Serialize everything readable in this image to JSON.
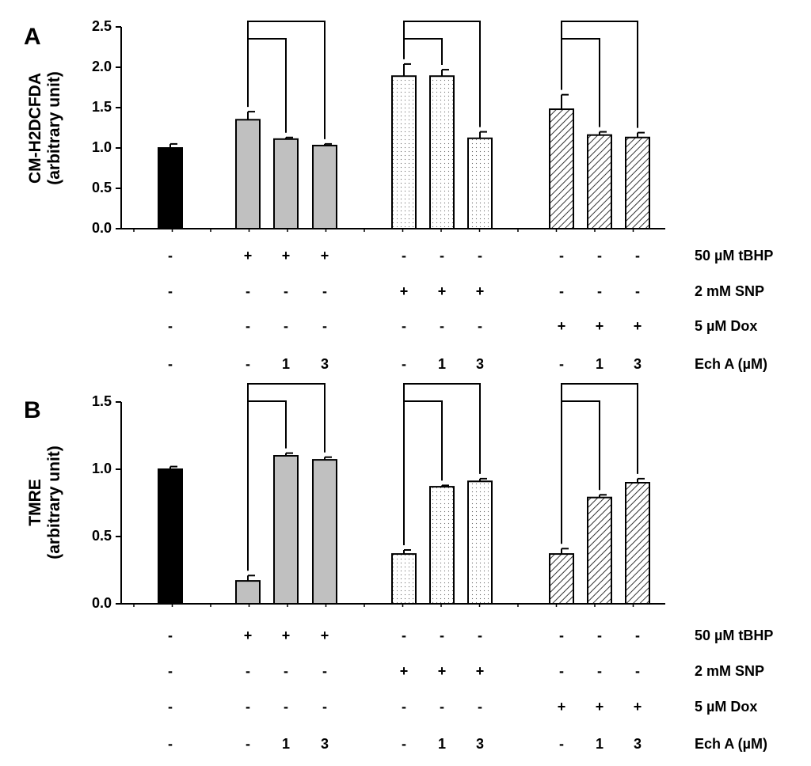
{
  "colors": {
    "control": "#000000",
    "tbhp": "#c0c0c0",
    "snp_bg": "#ffffff",
    "dot": "#666666",
    "hatch": "#333333"
  },
  "chart_data": [
    {
      "panel": "A",
      "type": "bar",
      "ylabel": [
        "CM-H2DCFDA",
        "(arbitrary unit)"
      ],
      "ylim": [
        0,
        2.5
      ],
      "yticks": [
        "0.0",
        "0.5",
        "1.0",
        "1.5",
        "2.0",
        "2.5"
      ],
      "bars": [
        {
          "group": "control",
          "value": 1.0,
          "error": 0.05
        },
        {
          "group": "tbhp",
          "value": 1.35,
          "error": 0.1
        },
        {
          "group": "tbhp",
          "value": 1.11,
          "error": 0.02
        },
        {
          "group": "tbhp",
          "value": 1.03,
          "error": 0.02
        },
        {
          "group": "snp",
          "value": 1.89,
          "error": 0.15
        },
        {
          "group": "snp",
          "value": 1.89,
          "error": 0.08
        },
        {
          "group": "snp",
          "value": 1.12,
          "error": 0.08
        },
        {
          "group": "dox",
          "value": 1.48,
          "error": 0.18
        },
        {
          "group": "dox",
          "value": 1.16,
          "error": 0.04
        },
        {
          "group": "dox",
          "value": 1.13,
          "error": 0.06
        }
      ],
      "conditions": [
        {
          "label": "50 µM tBHP",
          "cells": [
            "-",
            "+",
            "+",
            "+",
            "-",
            "-",
            "-",
            "-",
            "-",
            "-"
          ]
        },
        {
          "label": "2 mM SNP",
          "cells": [
            "-",
            "-",
            "-",
            "-",
            "+",
            "+",
            "+",
            "-",
            "-",
            "-"
          ]
        },
        {
          "label": "5 µM Dox",
          "cells": [
            "-",
            "-",
            "-",
            "-",
            "-",
            "-",
            "-",
            "+",
            "+",
            "+"
          ]
        },
        {
          "label": "Ech A (µM)",
          "cells": [
            "-",
            "-",
            "1",
            "3",
            "-",
            "1",
            "3",
            "-",
            "1",
            "3"
          ]
        }
      ]
    },
    {
      "panel": "B",
      "type": "bar",
      "ylabel": [
        "TMRE",
        "(arbitrary unit)"
      ],
      "ylim": [
        0,
        1.5
      ],
      "yticks": [
        "0.0",
        "0.5",
        "1.0",
        "1.5"
      ],
      "bars": [
        {
          "group": "control",
          "value": 1.0,
          "error": 0.02
        },
        {
          "group": "tbhp",
          "value": 0.17,
          "error": 0.04
        },
        {
          "group": "tbhp",
          "value": 1.1,
          "error": 0.02
        },
        {
          "group": "tbhp",
          "value": 1.07,
          "error": 0.02
        },
        {
          "group": "snp",
          "value": 0.37,
          "error": 0.03
        },
        {
          "group": "snp",
          "value": 0.87,
          "error": 0.01
        },
        {
          "group": "snp",
          "value": 0.91,
          "error": 0.02
        },
        {
          "group": "dox",
          "value": 0.37,
          "error": 0.04
        },
        {
          "group": "dox",
          "value": 0.79,
          "error": 0.02
        },
        {
          "group": "dox",
          "value": 0.9,
          "error": 0.03
        }
      ],
      "conditions": [
        {
          "label": "50 µM tBHP",
          "cells": [
            "-",
            "+",
            "+",
            "+",
            "-",
            "-",
            "-",
            "-",
            "-",
            "-"
          ]
        },
        {
          "label": "2 mM SNP",
          "cells": [
            "-",
            "-",
            "-",
            "-",
            "+",
            "+",
            "+",
            "-",
            "-",
            "-"
          ]
        },
        {
          "label": "5 µM Dox",
          "cells": [
            "-",
            "-",
            "-",
            "-",
            "-",
            "-",
            "-",
            "+",
            "+",
            "+"
          ]
        },
        {
          "label": "Ech A (µM)",
          "cells": [
            "-",
            "-",
            "1",
            "3",
            "-",
            "1",
            "3",
            "-",
            "1",
            "3"
          ]
        }
      ]
    }
  ]
}
